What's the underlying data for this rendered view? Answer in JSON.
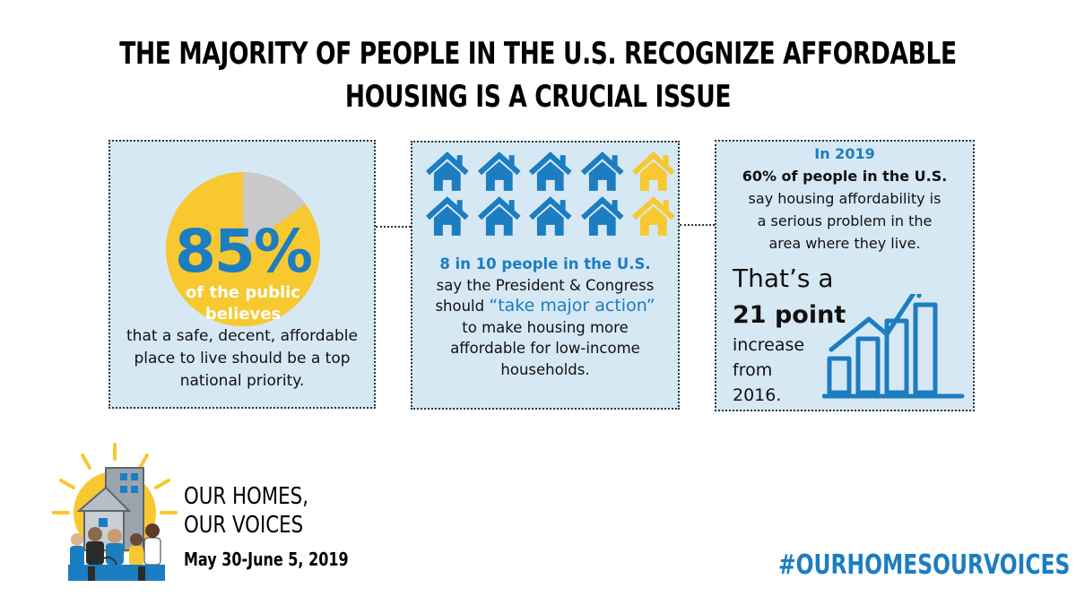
{
  "title": {
    "line1": "THE MAJORITY OF PEOPLE IN THE U.S. RECOGNIZE AFFORDABLE",
    "line2": "HOUSING IS A CRUCIAL ISSUE"
  },
  "panel1": {
    "percent": "85%",
    "percent_value": 85,
    "sub_line1": "of the public",
    "sub_line2": "believes",
    "text_line1": "that a safe, decent, affordable",
    "text_line2": "place to live should be a top",
    "text_line3": "national priority."
  },
  "panel2": {
    "houses_total": 10,
    "houses_highlighted": 8,
    "headline": "8 in 10 people in the U.S.",
    "line2": "say the President & Congress",
    "line3_prefix": "should ",
    "line3_quote": "“take major action”",
    "line4": "to make housing more",
    "line5": "affordable for low-income",
    "line6": "households."
  },
  "panel3": {
    "year": "In 2019",
    "headline": "60% of people in the U.S.",
    "line2": "say housing affordability is",
    "line3": "a serious problem in the",
    "line4": "area where they live.",
    "thats": "That’s a",
    "point": "21 point",
    "inc1": "increase",
    "inc2": "from",
    "inc3": "2016."
  },
  "footer": {
    "brand_line1": "OUR HOMES,",
    "brand_line2": "OUR VOICES",
    "dates": "May 30-June 5, 2019",
    "hashtag": "#OURHOMESOURVOICES"
  },
  "colors": {
    "accent_blue": "#1c7dc1",
    "highlight_yellow": "#f7c82f",
    "panel_bg": "#d6e8f4",
    "pie_remainder": "#c9c9c9"
  }
}
